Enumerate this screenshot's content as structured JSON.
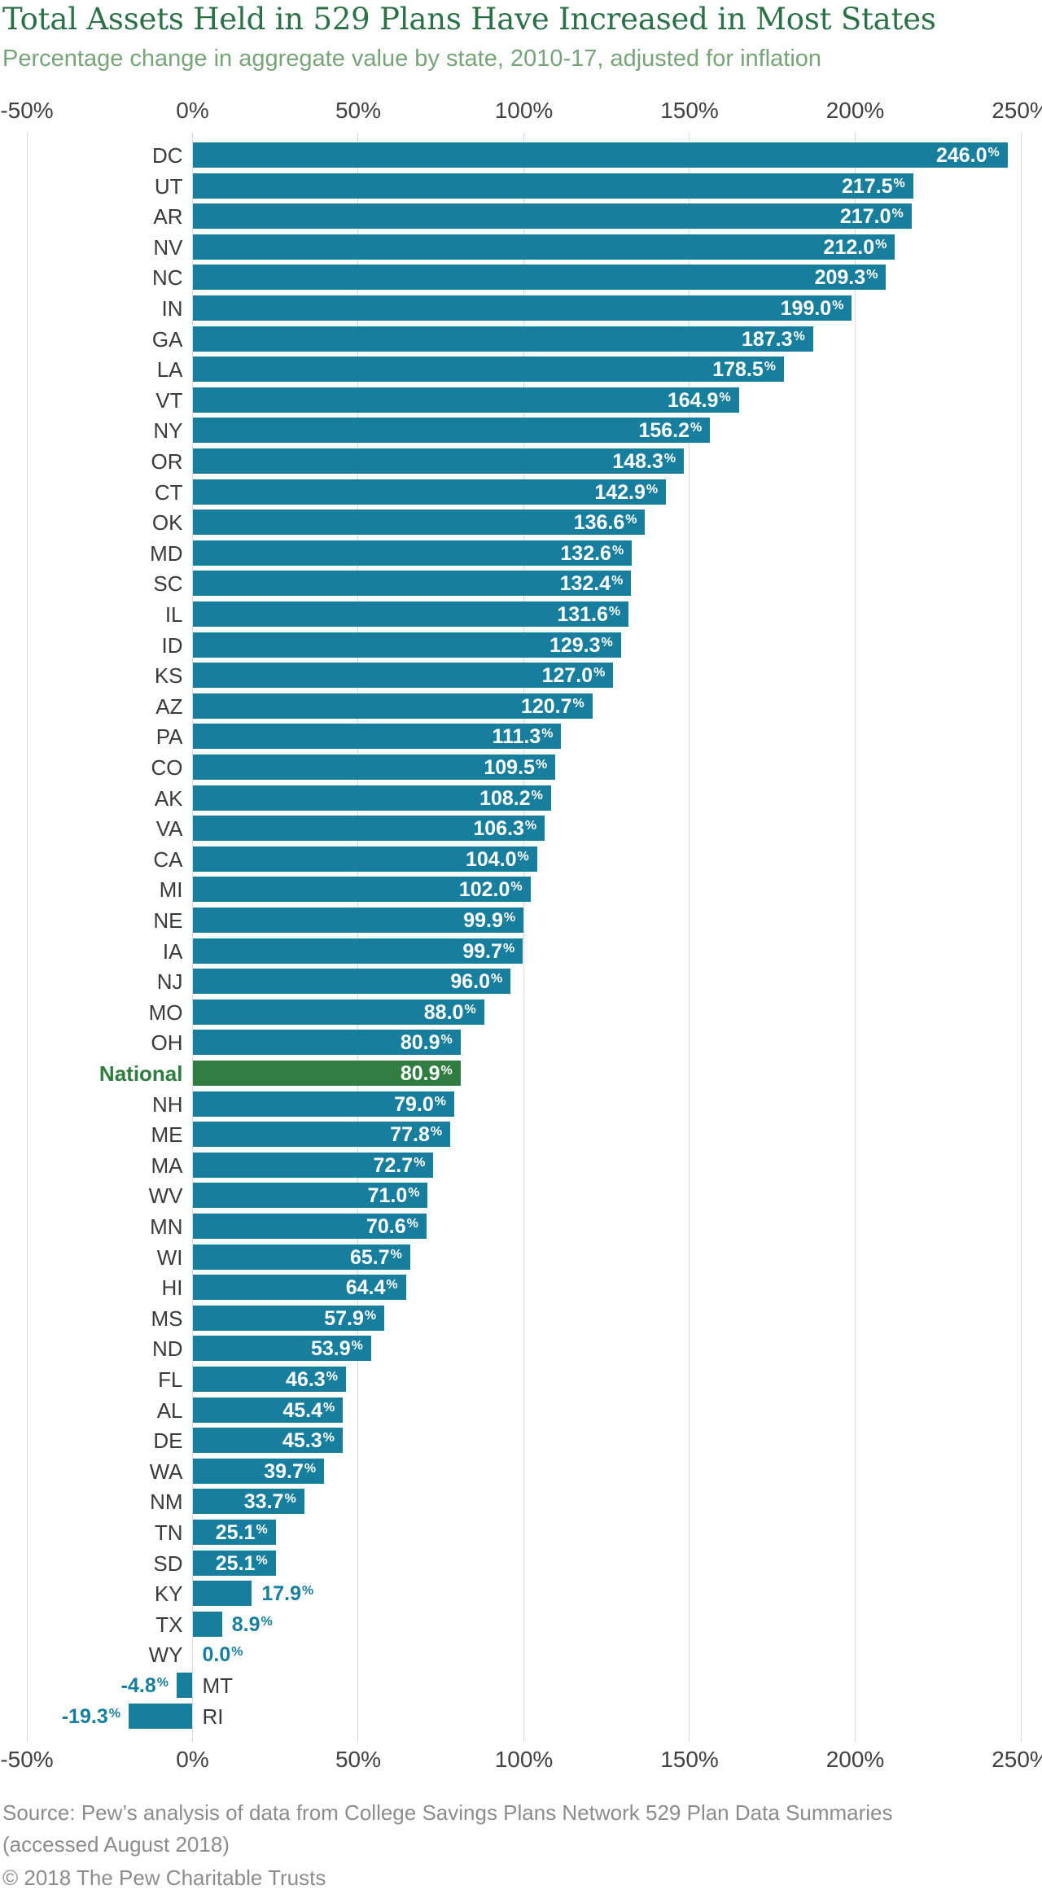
{
  "header": {
    "title": "Total Assets Held in 529 Plans Have Increased in Most States",
    "subtitle": "Percentage change in aggregate value by state, 2010-17, adjusted for inflation"
  },
  "chart_data": {
    "type": "bar",
    "orientation": "horizontal",
    "title": "Total Assets Held in 529 Plans Have Increased in Most States",
    "subtitle": "Percentage change in aggregate value by state, 2010-17, adjusted for inflation",
    "unit": "%",
    "xlim": [
      -50,
      250
    ],
    "x_tick_values": [
      -50,
      0,
      50,
      100,
      150,
      200,
      250
    ],
    "x_tick_labels": [
      "-50%",
      "0%",
      "50%",
      "100%",
      "150%",
      "200%",
      "250%"
    ],
    "grid": true,
    "value_labels": true,
    "highlight_category": "National",
    "categories": [
      "DC",
      "UT",
      "AR",
      "NV",
      "NC",
      "IN",
      "GA",
      "LA",
      "VT",
      "NY",
      "OR",
      "CT",
      "OK",
      "MD",
      "SC",
      "IL",
      "ID",
      "KS",
      "AZ",
      "PA",
      "CO",
      "AK",
      "VA",
      "CA",
      "MI",
      "NE",
      "IA",
      "NJ",
      "MO",
      "OH",
      "National",
      "NH",
      "ME",
      "MA",
      "WV",
      "MN",
      "WI",
      "HI",
      "MS",
      "ND",
      "FL",
      "AL",
      "DE",
      "WA",
      "NM",
      "TN",
      "SD",
      "KY",
      "TX",
      "WY",
      "MT",
      "RI"
    ],
    "values": [
      246.0,
      217.5,
      217.0,
      212.0,
      209.3,
      199.0,
      187.3,
      178.5,
      164.9,
      156.2,
      148.3,
      142.9,
      136.6,
      132.6,
      132.4,
      131.6,
      129.3,
      127.0,
      120.7,
      111.3,
      109.5,
      108.2,
      106.3,
      104.0,
      102.0,
      99.9,
      99.7,
      96.0,
      88.0,
      80.9,
      80.9,
      79.0,
      77.8,
      72.7,
      71.0,
      70.6,
      65.7,
      64.4,
      57.9,
      53.9,
      46.3,
      45.4,
      45.3,
      39.7,
      33.7,
      25.1,
      25.1,
      17.9,
      8.9,
      0.0,
      -4.8,
      -19.3
    ]
  },
  "colors": {
    "bar": "#177E9E",
    "highlight_bar": "#2F7D40",
    "value_inside": "#FFFFFF",
    "value_outside": "#177E9E",
    "category_label": "#3B3B3B",
    "highlight_label": "#2F7D40",
    "title": "#2B7147",
    "subtitle": "#77A478",
    "axis_text": "#414141",
    "gridline": "#D8D8D8",
    "footer_text": "#8C8C8C"
  },
  "footer": {
    "source": "Source: Pew’s analysis of data from College Savings Plans Network 529 Plan Data Summaries (accessed August 2018)",
    "copyright": "© 2018 The Pew Charitable Trusts"
  }
}
